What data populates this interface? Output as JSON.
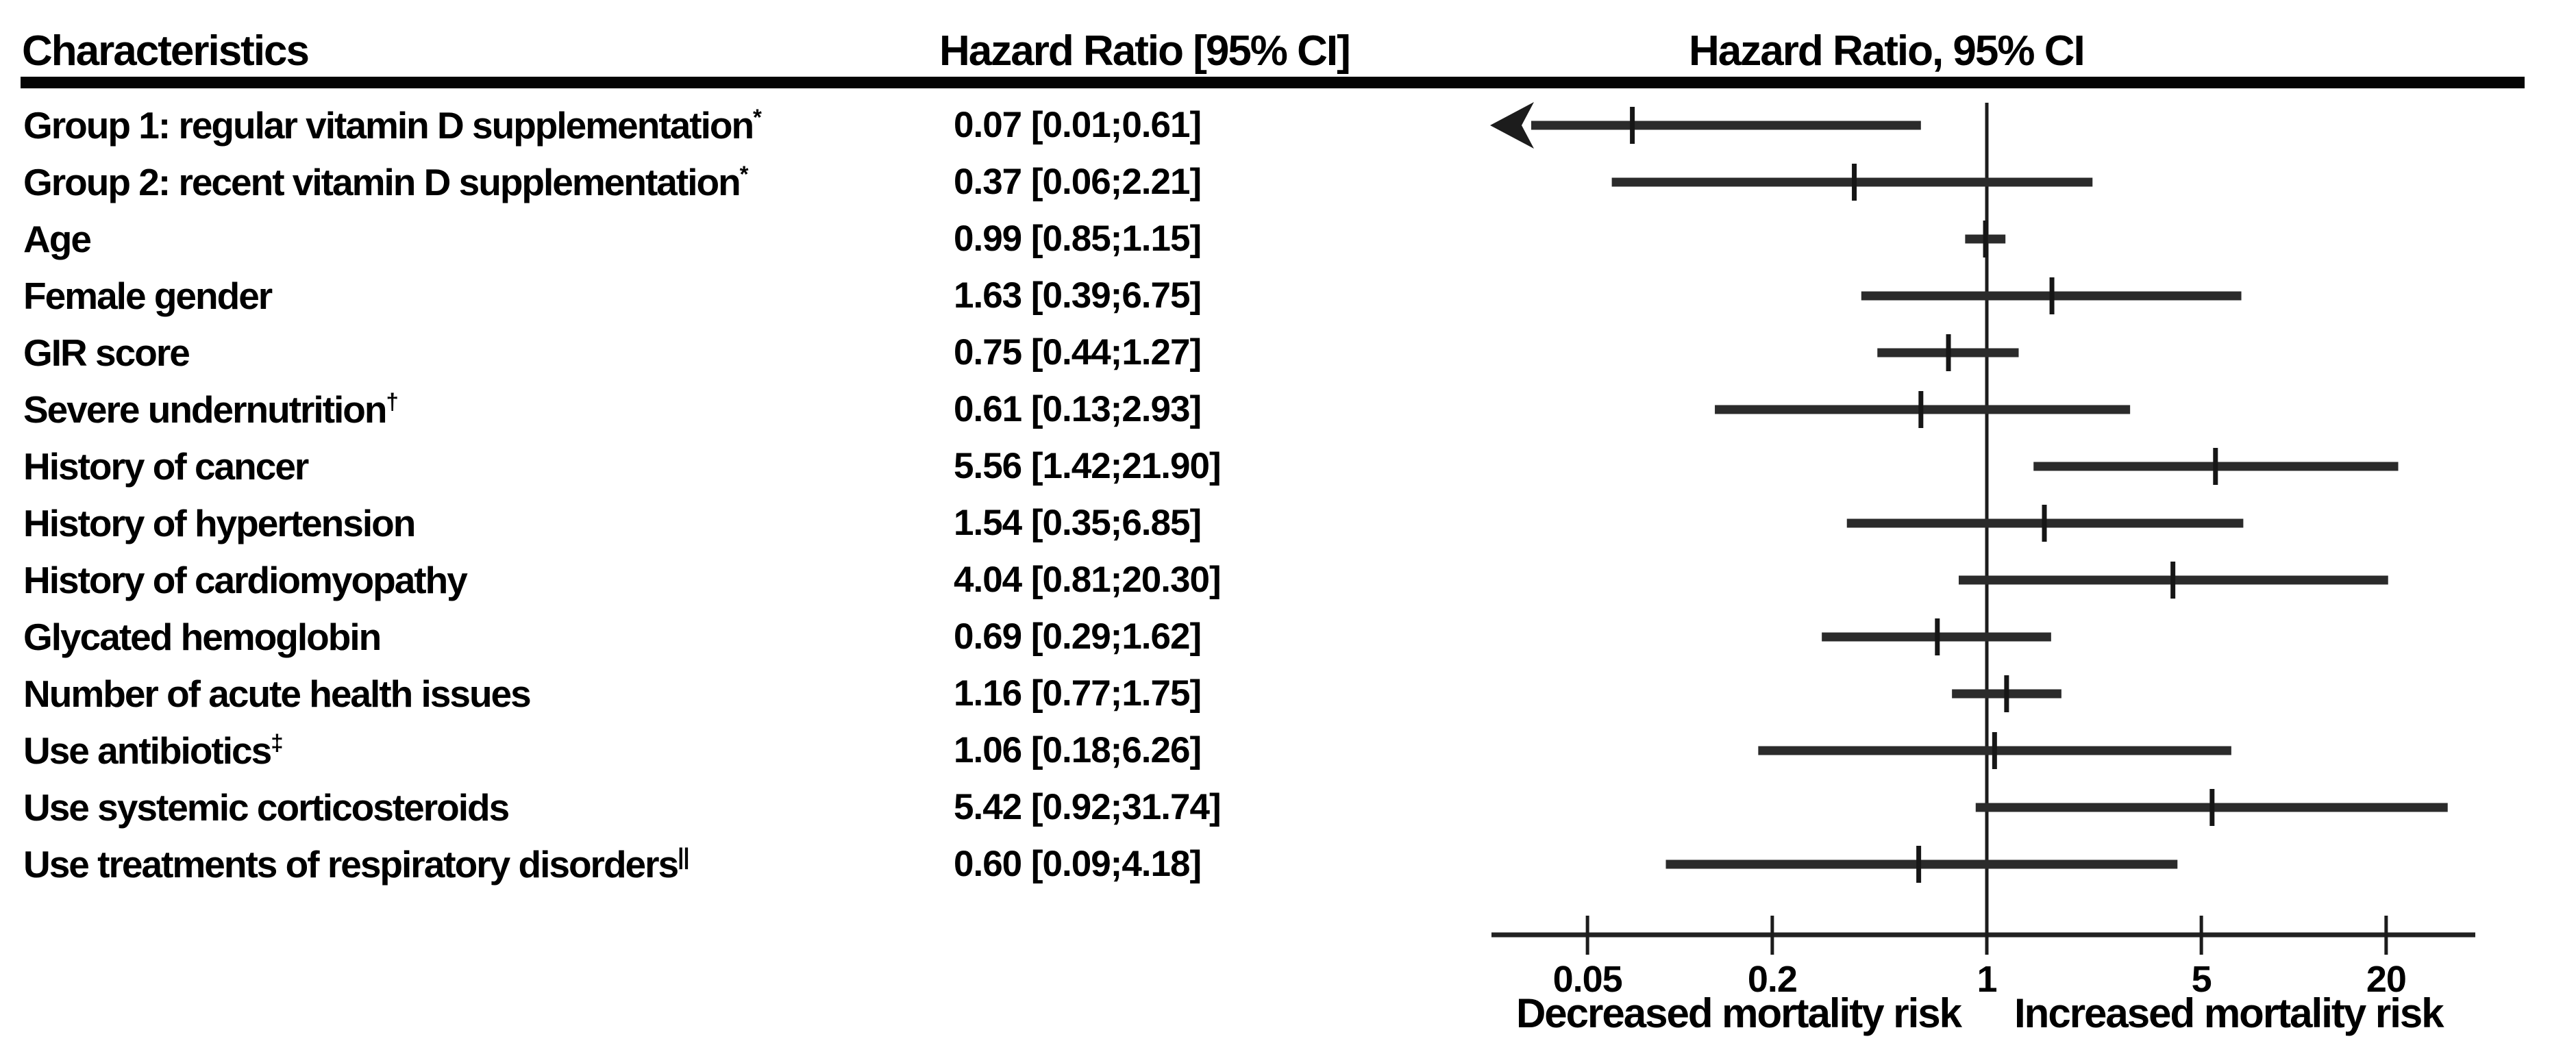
{
  "chart_data": {
    "type": "forest",
    "title_columns": {
      "characteristics": "Characteristics",
      "hr_ci": "Hazard Ratio [95% CI]",
      "plot": "Hazard Ratio, 95% CI"
    },
    "x_axis": {
      "scale": "log",
      "ticks": [
        0.05,
        0.2,
        1,
        5,
        20
      ],
      "tick_labels": [
        "0.05",
        "0.2",
        "1",
        "5",
        "20"
      ],
      "reference_line": 1,
      "axis_range_approx": [
        0.024,
        39
      ]
    },
    "axis_annotations": {
      "left": "Decreased mortality risk",
      "right": "Increased mortality risk"
    },
    "colors": {
      "text": "#000000",
      "ci_bar": "#2b2b2b",
      "axis": "#222222",
      "point_tick": "#161616"
    },
    "rows": [
      {
        "label": "Group 1: regular vitamin D supplementation",
        "sup": "*",
        "display": "0.07 [0.01;0.61]",
        "hr": 0.07,
        "lo": 0.01,
        "hi": 0.61,
        "arrow_low": true
      },
      {
        "label": "Group 2: recent vitamin D supplementation",
        "sup": "*",
        "display": "0.37 [0.06;2.21]",
        "hr": 0.37,
        "lo": 0.06,
        "hi": 2.21,
        "arrow_low": false
      },
      {
        "label": "Age",
        "sup": "",
        "display": "0.99 [0.85;1.15]",
        "hr": 0.99,
        "lo": 0.85,
        "hi": 1.15,
        "arrow_low": false
      },
      {
        "label": "Female gender",
        "sup": "",
        "display": "1.63 [0.39;6.75]",
        "hr": 1.63,
        "lo": 0.39,
        "hi": 6.75,
        "arrow_low": false
      },
      {
        "label": "GIR score",
        "sup": "",
        "display": "0.75 [0.44;1.27]",
        "hr": 0.75,
        "lo": 0.44,
        "hi": 1.27,
        "arrow_low": false
      },
      {
        "label": "Severe undernutrition",
        "sup": "†",
        "display": "0.61 [0.13;2.93]",
        "hr": 0.61,
        "lo": 0.13,
        "hi": 2.93,
        "arrow_low": false
      },
      {
        "label": "History of cancer",
        "sup": "",
        "display": "5.56 [1.42;21.90]",
        "hr": 5.56,
        "lo": 1.42,
        "hi": 21.9,
        "arrow_low": false
      },
      {
        "label": "History of hypertension",
        "sup": "",
        "display": "1.54 [0.35;6.85]",
        "hr": 1.54,
        "lo": 0.35,
        "hi": 6.85,
        "arrow_low": false
      },
      {
        "label": "History of cardiomyopathy",
        "sup": "",
        "display": "4.04 [0.81;20.30]",
        "hr": 4.04,
        "lo": 0.81,
        "hi": 20.3,
        "arrow_low": false
      },
      {
        "label": "Glycated hemoglobin",
        "sup": "",
        "display": "0.69 [0.29;1.62]",
        "hr": 0.69,
        "lo": 0.29,
        "hi": 1.62,
        "arrow_low": false
      },
      {
        "label": "Number of acute health issues",
        "sup": "",
        "display": "1.16 [0.77;1.75]",
        "hr": 1.16,
        "lo": 0.77,
        "hi": 1.75,
        "arrow_low": false
      },
      {
        "label": "Use antibiotics",
        "sup": "‡",
        "display": "1.06 [0.18;6.26]",
        "hr": 1.06,
        "lo": 0.18,
        "hi": 6.26,
        "arrow_low": false
      },
      {
        "label": "Use systemic corticosteroids",
        "sup": "",
        "display": "5.42 [0.92;31.74]",
        "hr": 5.42,
        "lo": 0.92,
        "hi": 31.74,
        "arrow_low": false
      },
      {
        "label": "Use treatments of respiratory disorders",
        "sup": "||",
        "display": "0.60 [0.09;4.18]",
        "hr": 0.6,
        "lo": 0.09,
        "hi": 4.18,
        "arrow_low": false
      }
    ]
  }
}
